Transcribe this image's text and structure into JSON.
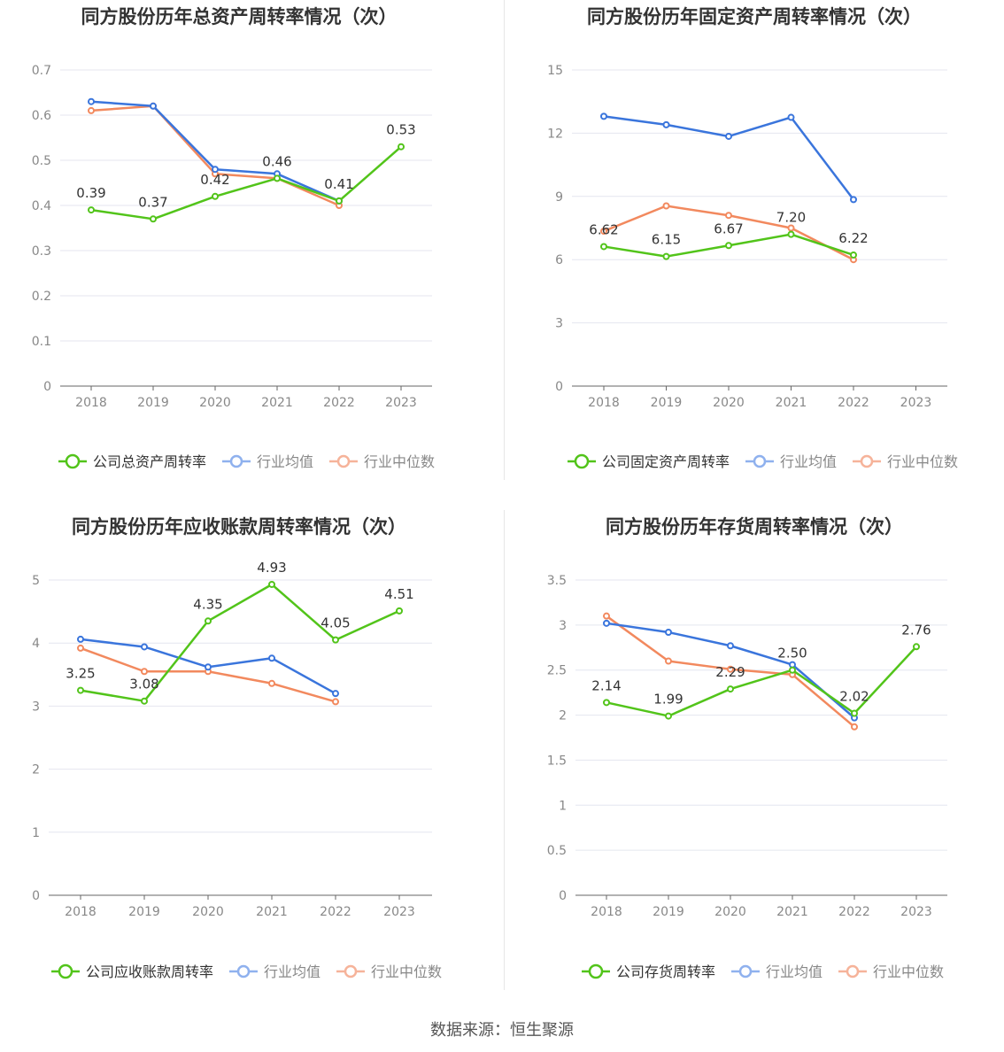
{
  "footer": "数据来源：恒生聚源",
  "colors": {
    "company": "#52c41a",
    "avg": "#3a75dc",
    "median": "#f2895e",
    "avg_legend": "#8fb1ee",
    "median_legend": "#f6b39a"
  },
  "chart_data": [
    {
      "type": "line",
      "title": "同方股份历年总资产周转率情况（次）",
      "categories": [
        "2018",
        "2019",
        "2020",
        "2021",
        "2022",
        "2023"
      ],
      "yticks": [
        "0",
        "0.1",
        "0.2",
        "0.3",
        "0.4",
        "0.5",
        "0.6",
        "0.7"
      ],
      "ylim": [
        0,
        0.7
      ],
      "series": [
        {
          "name": "公司总资产周转率",
          "values": [
            0.39,
            0.37,
            0.42,
            0.46,
            0.41,
            0.53
          ],
          "labels": [
            "0.39",
            "0.37",
            "0.42",
            "0.46",
            "0.41",
            "0.53"
          ]
        },
        {
          "name": "行业均值",
          "values": [
            0.63,
            0.62,
            0.48,
            0.47,
            0.41,
            null
          ]
        },
        {
          "name": "行业中位数",
          "values": [
            0.61,
            0.62,
            0.47,
            0.46,
            0.4,
            null
          ]
        }
      ]
    },
    {
      "type": "line",
      "title": "同方股份历年固定资产周转率情况（次）",
      "categories": [
        "2018",
        "2019",
        "2020",
        "2021",
        "2022",
        "2023"
      ],
      "yticks": [
        "0",
        "3",
        "6",
        "9",
        "12",
        "15"
      ],
      "ylim": [
        0,
        15
      ],
      "series": [
        {
          "name": "公司固定资产周转率",
          "values": [
            6.62,
            6.15,
            6.67,
            7.2,
            6.22,
            null
          ],
          "labels": [
            "6.62",
            "6.15",
            "6.67",
            "7.20",
            "6.22",
            null
          ]
        },
        {
          "name": "行业均值",
          "values": [
            12.8,
            12.4,
            11.85,
            12.75,
            8.85,
            null
          ]
        },
        {
          "name": "行业中位数",
          "values": [
            7.35,
            8.55,
            8.1,
            7.5,
            6.0,
            null
          ]
        }
      ]
    },
    {
      "type": "line",
      "title": "同方股份历年应收账款周转率情况（次）",
      "categories": [
        "2018",
        "2019",
        "2020",
        "2021",
        "2022",
        "2023"
      ],
      "yticks": [
        "0",
        "1",
        "2",
        "3",
        "4",
        "5"
      ],
      "ylim": [
        0,
        5
      ],
      "series": [
        {
          "name": "公司应收账款周转率",
          "values": [
            3.25,
            3.08,
            4.35,
            4.93,
            4.05,
            4.51
          ],
          "labels": [
            "3.25",
            "3.08",
            "4.35",
            "4.93",
            "4.05",
            "4.51"
          ]
        },
        {
          "name": "行业均值",
          "values": [
            4.06,
            3.94,
            3.62,
            3.76,
            3.2,
            null
          ]
        },
        {
          "name": "行业中位数",
          "values": [
            3.92,
            3.55,
            3.55,
            3.36,
            3.07,
            null
          ]
        }
      ]
    },
    {
      "type": "line",
      "title": "同方股份历年存货周转率情况（次）",
      "categories": [
        "2018",
        "2019",
        "2020",
        "2021",
        "2022",
        "2023"
      ],
      "yticks": [
        "0",
        "0.5",
        "1",
        "1.5",
        "2",
        "2.5",
        "3",
        "3.5"
      ],
      "ylim": [
        0,
        3.5
      ],
      "series": [
        {
          "name": "公司存货周转率",
          "values": [
            2.14,
            1.99,
            2.29,
            2.5,
            2.02,
            2.76
          ],
          "labels": [
            "2.14",
            "1.99",
            "2.29",
            "2.50",
            "2.02",
            "2.76"
          ]
        },
        {
          "name": "行业均值",
          "values": [
            3.02,
            2.92,
            2.77,
            2.56,
            1.97,
            null
          ]
        },
        {
          "name": "行业中位数",
          "values": [
            3.1,
            2.6,
            2.51,
            2.45,
            1.87,
            null
          ]
        }
      ]
    }
  ]
}
